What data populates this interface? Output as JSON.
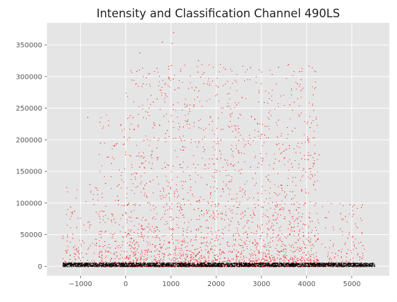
{
  "chart_data": {
    "type": "scatter",
    "title": "Intensity and Classification Channel 490LS",
    "xlabel": "",
    "ylabel": "",
    "xlim": [
      -1740,
      5830
    ],
    "ylim": [
      -15000,
      385000
    ],
    "x_ticks": [
      -1000,
      0,
      1000,
      2000,
      3000,
      4000,
      5000
    ],
    "x_tick_labels": [
      "−1000",
      "0",
      "1000",
      "2000",
      "3000",
      "4000",
      "5000"
    ],
    "y_ticks": [
      0,
      50000,
      100000,
      150000,
      200000,
      250000,
      300000,
      350000
    ],
    "y_tick_labels": [
      "0",
      "50000",
      "100000",
      "150000",
      "200000",
      "250000",
      "300000",
      "350000"
    ],
    "grid": true,
    "background": "#e5e5e5",
    "grid_color": "#ffffff",
    "series": [
      {
        "color": "#ff0000",
        "marker": "dot",
        "x_range": [
          -1400,
          5300
        ],
        "y_range": [
          0,
          370000
        ],
        "notable_points": [
          {
            "x": 1050,
            "y": 370000
          },
          {
            "x": 1020,
            "y": 353000
          },
          {
            "x": 800,
            "y": 355000
          },
          {
            "x": 1000,
            "y": 318000
          },
          {
            "x": 1600,
            "y": 326000
          },
          {
            "x": 2200,
            "y": 312000
          },
          {
            "x": 2750,
            "y": 315000
          },
          {
            "x": 300,
            "y": 338000
          },
          {
            "x": -850,
            "y": 236000
          },
          {
            "x": 4050,
            "y": 155000
          },
          {
            "x": 4950,
            "y": 98000
          }
        ]
      },
      {
        "color": "#000000",
        "marker": "dot",
        "x_range": [
          -1400,
          5500
        ],
        "y_range": [
          0,
          6000
        ]
      }
    ]
  }
}
